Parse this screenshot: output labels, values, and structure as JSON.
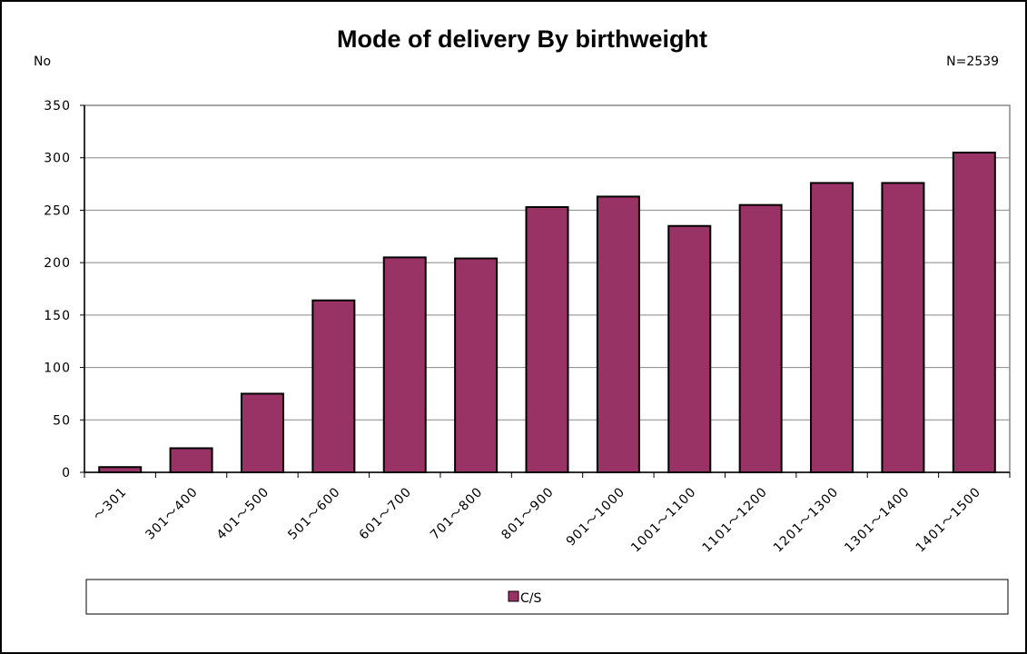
{
  "chart_data": {
    "type": "bar",
    "title": "Mode of delivery By birthweight",
    "y_label": "No",
    "annotation": "N=2539",
    "categories": [
      "〜301",
      "301〜400",
      "401〜500",
      "501〜600",
      "601〜700",
      "701〜800",
      "801〜900",
      "901〜1000",
      "1001〜1100",
      "1101〜1200",
      "1201〜1300",
      "1301〜1400",
      "1401〜1500"
    ],
    "series": [
      {
        "name": "C/S",
        "color": "#993366",
        "values": [
          5,
          23,
          75,
          164,
          205,
          204,
          253,
          263,
          235,
          255,
          276,
          276,
          305
        ]
      }
    ],
    "ylim": [
      0,
      350
    ],
    "yticks": [
      0,
      50,
      100,
      150,
      200,
      250,
      300,
      350
    ],
    "grid": true,
    "legend": "bottom"
  }
}
